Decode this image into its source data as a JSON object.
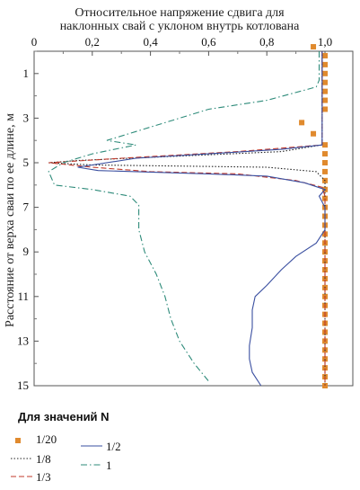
{
  "chart_data": {
    "type": "line",
    "title_lines": [
      "Относительное напряжение сдвига для",
      "наклонных свай с уклоном внутрь котлована"
    ],
    "ylabel": "Расстояние от верха сваи по ее длине, м",
    "xlim": [
      0,
      1.0
    ],
    "ylim": [
      0,
      15
    ],
    "y_inverted": true,
    "x_axis_position": "top",
    "x_tick_labels": [
      "0",
      "0,2",
      "0,4",
      "0,6",
      "0,8",
      "1,0"
    ],
    "x_tick_values": [
      0,
      0.2,
      0.4,
      0.6,
      0.8,
      1.0
    ],
    "y_tick_labels": [
      "1",
      "3",
      "5",
      "7",
      "9",
      "11",
      "13",
      "15"
    ],
    "y_tick_values": [
      1,
      3,
      5,
      7,
      9,
      11,
      13,
      15
    ],
    "legend_title": "Для значений N",
    "series": [
      {
        "name": "1/20",
        "style": "marker-square",
        "color": "#E08A2E",
        "points": [
          [
            0.96,
            -0.2
          ],
          [
            1.0,
            0.2
          ],
          [
            1.0,
            0.6
          ],
          [
            1.0,
            1.0
          ],
          [
            1.0,
            1.4
          ],
          [
            1.0,
            1.8
          ],
          [
            1.0,
            2.2
          ],
          [
            1.0,
            2.6
          ],
          [
            0.92,
            3.2
          ],
          [
            0.96,
            3.7
          ],
          [
            1.0,
            4.2
          ],
          [
            1.0,
            4.6
          ],
          [
            1.0,
            5.0
          ],
          [
            1.0,
            5.4
          ],
          [
            1.0,
            5.8
          ],
          [
            1.0,
            6.2
          ],
          [
            1.0,
            6.6
          ],
          [
            1.0,
            7.0
          ],
          [
            1.0,
            7.4
          ],
          [
            1.0,
            7.8
          ],
          [
            1.0,
            8.2
          ],
          [
            1.0,
            8.6
          ],
          [
            1.0,
            9.0
          ],
          [
            1.0,
            9.4
          ],
          [
            1.0,
            9.8
          ],
          [
            1.0,
            10.2
          ],
          [
            1.0,
            10.6
          ],
          [
            1.0,
            11.0
          ],
          [
            1.0,
            11.4
          ],
          [
            1.0,
            11.8
          ],
          [
            1.0,
            12.2
          ],
          [
            1.0,
            12.6
          ],
          [
            1.0,
            13.0
          ],
          [
            1.0,
            13.4
          ],
          [
            1.0,
            13.8
          ],
          [
            1.0,
            14.2
          ],
          [
            1.0,
            14.6
          ],
          [
            1.0,
            15.0
          ]
        ]
      },
      {
        "name": "1/8",
        "style": "dotted",
        "color": "#222222",
        "points": [
          [
            0.99,
            0
          ],
          [
            0.99,
            2
          ],
          [
            0.99,
            4.2
          ],
          [
            0.85,
            4.5
          ],
          [
            0.5,
            4.7
          ],
          [
            0.15,
            4.9
          ],
          [
            0.05,
            5.0
          ],
          [
            0.2,
            5.1
          ],
          [
            0.5,
            5.15
          ],
          [
            0.8,
            5.2
          ],
          [
            0.97,
            5.4
          ],
          [
            1.0,
            5.8
          ],
          [
            1.0,
            6.2
          ],
          [
            1.0,
            8
          ],
          [
            1.0,
            15
          ]
        ]
      },
      {
        "name": "1/3",
        "style": "dashed",
        "color": "#C0392B",
        "points": [
          [
            0.99,
            0
          ],
          [
            0.99,
            2
          ],
          [
            0.99,
            4.2
          ],
          [
            0.7,
            4.5
          ],
          [
            0.3,
            4.8
          ],
          [
            0.05,
            5.0
          ],
          [
            0.2,
            5.2
          ],
          [
            0.4,
            5.4
          ],
          [
            0.7,
            5.5
          ],
          [
            0.9,
            5.8
          ],
          [
            0.99,
            6.1
          ],
          [
            1.0,
            6.5
          ],
          [
            1.0,
            8
          ],
          [
            1.0,
            15
          ]
        ]
      },
      {
        "name": "1/2",
        "style": "solid",
        "color": "#3A4FA0",
        "points": [
          [
            0.99,
            0
          ],
          [
            0.99,
            2
          ],
          [
            0.99,
            4.2
          ],
          [
            0.85,
            4.4
          ],
          [
            0.6,
            4.6
          ],
          [
            0.35,
            4.8
          ],
          [
            0.15,
            5.2
          ],
          [
            0.22,
            5.35
          ],
          [
            0.6,
            5.5
          ],
          [
            0.8,
            5.6
          ],
          [
            0.93,
            5.9
          ],
          [
            1.0,
            6.2
          ],
          [
            0.98,
            6.5
          ],
          [
            1.0,
            7.0
          ],
          [
            1.0,
            8.0
          ],
          [
            0.97,
            8.6
          ],
          [
            0.9,
            9.2
          ],
          [
            0.85,
            9.8
          ],
          [
            0.8,
            10.5
          ],
          [
            0.76,
            11.0
          ],
          [
            0.75,
            11.6
          ],
          [
            0.75,
            12.4
          ],
          [
            0.74,
            13.2
          ],
          [
            0.74,
            13.8
          ],
          [
            0.75,
            14.4
          ],
          [
            0.78,
            15.0
          ]
        ]
      },
      {
        "name": "1",
        "style": "dashdot",
        "color": "#2E8B7A",
        "points": [
          [
            0.98,
            0
          ],
          [
            0.98,
            1.3
          ],
          [
            0.97,
            1.6
          ],
          [
            0.8,
            2.2
          ],
          [
            0.6,
            2.6
          ],
          [
            0.45,
            3.2
          ],
          [
            0.35,
            3.6
          ],
          [
            0.25,
            4.0
          ],
          [
            0.35,
            4.2
          ],
          [
            0.2,
            4.6
          ],
          [
            0.1,
            5.0
          ],
          [
            0.05,
            5.4
          ],
          [
            0.07,
            6.0
          ],
          [
            0.2,
            6.2
          ],
          [
            0.33,
            6.5
          ],
          [
            0.36,
            6.9
          ],
          [
            0.36,
            8.0
          ],
          [
            0.38,
            9.0
          ],
          [
            0.42,
            10.0
          ],
          [
            0.45,
            11.0
          ],
          [
            0.47,
            12.0
          ],
          [
            0.5,
            13.0
          ],
          [
            0.55,
            14.0
          ],
          [
            0.6,
            14.8
          ]
        ]
      }
    ]
  }
}
